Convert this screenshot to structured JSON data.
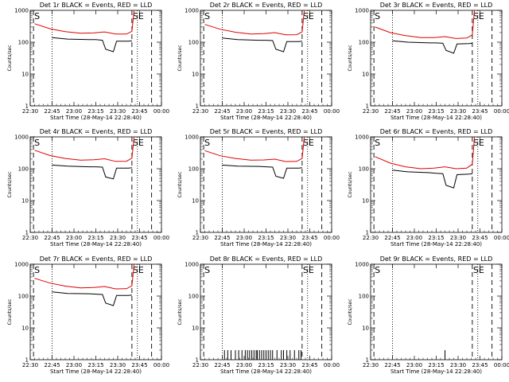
{
  "colors": {
    "events": "#000000",
    "lld": "#e00000"
  },
  "common": {
    "ylabel": "Counts/sec",
    "xlabel": "Start Time (28-May-14 22:28:40)",
    "yticks": [
      "1",
      "10",
      "100",
      "1000"
    ],
    "xticks": [
      "22:30",
      "22:45",
      "23:00",
      "23:15",
      "23:30",
      "23:45",
      "00:00"
    ],
    "marker_s": "S",
    "marker_se": "SE"
  },
  "chart_data": [
    {
      "type": "line",
      "title": "Det 1r BLACK = Events, RED = LLD",
      "yscale": "log",
      "ylim": [
        1,
        1000
      ],
      "series": [
        {
          "name": "Events",
          "points": [
            [
              0.2,
              0
            ],
            [
              0.6,
              0
            ],
            [
              1.0,
              140
            ],
            [
              1.7,
              125
            ],
            [
              2.7,
              120
            ],
            [
              3.0,
              120
            ],
            [
              3.3,
              115
            ],
            [
              3.45,
              60
            ],
            [
              3.8,
              50
            ],
            [
              3.95,
              108
            ],
            [
              4.5,
              108
            ],
            [
              4.65,
              110
            ]
          ]
        },
        {
          "name": "LLD",
          "points": [
            [
              0.2,
              380
            ],
            [
              0.9,
              265
            ],
            [
              1.6,
              215
            ],
            [
              2.3,
              190
            ],
            [
              2.9,
              195
            ],
            [
              3.4,
              210
            ],
            [
              3.9,
              180
            ],
            [
              4.4,
              180
            ],
            [
              4.65,
              220
            ],
            [
              4.75,
              1000
            ]
          ]
        }
      ]
    },
    {
      "type": "line",
      "title": "Det 2r BLACK = Events, RED = LLD",
      "yscale": "log",
      "ylim": [
        1,
        1000
      ],
      "series": [
        {
          "name": "Events",
          "points": [
            [
              0.2,
              0
            ],
            [
              0.6,
              0
            ],
            [
              1.0,
              135
            ],
            [
              1.7,
              120
            ],
            [
              2.7,
              115
            ],
            [
              3.0,
              115
            ],
            [
              3.3,
              112
            ],
            [
              3.45,
              60
            ],
            [
              3.8,
              50
            ],
            [
              3.95,
              105
            ],
            [
              4.5,
              105
            ],
            [
              4.65,
              108
            ]
          ]
        },
        {
          "name": "LLD",
          "points": [
            [
              0.2,
              360
            ],
            [
              0.9,
              255
            ],
            [
              1.6,
              205
            ],
            [
              2.3,
              180
            ],
            [
              2.9,
              185
            ],
            [
              3.4,
              200
            ],
            [
              3.9,
              170
            ],
            [
              4.4,
              172
            ],
            [
              4.65,
              210
            ],
            [
              4.75,
              1000
            ]
          ]
        }
      ]
    },
    {
      "type": "line",
      "title": "Det 3r BLACK = Events, RED = LLD",
      "yscale": "log",
      "ylim": [
        1,
        1000
      ],
      "series": [
        {
          "name": "Events",
          "points": [
            [
              0.2,
              0
            ],
            [
              0.6,
              0
            ],
            [
              1.0,
              110
            ],
            [
              1.7,
              100
            ],
            [
              2.7,
              95
            ],
            [
              3.0,
              95
            ],
            [
              3.3,
              92
            ],
            [
              3.45,
              55
            ],
            [
              3.8,
              45
            ],
            [
              3.95,
              88
            ],
            [
              4.5,
              90
            ],
            [
              4.65,
              92
            ]
          ]
        },
        {
          "name": "LLD",
          "points": [
            [
              0.2,
              300
            ],
            [
              0.9,
              200
            ],
            [
              1.6,
              160
            ],
            [
              2.3,
              140
            ],
            [
              2.9,
              140
            ],
            [
              3.4,
              150
            ],
            [
              3.9,
              130
            ],
            [
              4.4,
              135
            ],
            [
              4.65,
              170
            ],
            [
              4.75,
              1000
            ]
          ]
        }
      ]
    },
    {
      "type": "line",
      "title": "Det 4r BLACK = Events, RED = LLD",
      "yscale": "log",
      "ylim": [
        1,
        1000
      ],
      "series": [
        {
          "name": "Events",
          "points": [
            [
              0.2,
              0
            ],
            [
              0.6,
              0
            ],
            [
              1.0,
              130
            ],
            [
              1.7,
              120
            ],
            [
              2.7,
              115
            ],
            [
              3.0,
              115
            ],
            [
              3.3,
              112
            ],
            [
              3.45,
              55
            ],
            [
              3.8,
              48
            ],
            [
              3.95,
              105
            ],
            [
              4.5,
              105
            ],
            [
              4.65,
              108
            ]
          ]
        },
        {
          "name": "LLD",
          "points": [
            [
              0.2,
              380
            ],
            [
              0.9,
              260
            ],
            [
              1.6,
              210
            ],
            [
              2.3,
              185
            ],
            [
              2.9,
              190
            ],
            [
              3.4,
              205
            ],
            [
              3.9,
              170
            ],
            [
              4.4,
              172
            ],
            [
              4.65,
              215
            ],
            [
              4.75,
              1000
            ]
          ]
        }
      ]
    },
    {
      "type": "line",
      "title": "Det 5r BLACK = Events, RED = LLD",
      "yscale": "log",
      "ylim": [
        1,
        1000
      ],
      "series": [
        {
          "name": "Events",
          "points": [
            [
              0.2,
              0
            ],
            [
              0.6,
              0
            ],
            [
              1.0,
              130
            ],
            [
              1.7,
              120
            ],
            [
              2.7,
              118
            ],
            [
              3.0,
              115
            ],
            [
              3.3,
              112
            ],
            [
              3.45,
              58
            ],
            [
              3.8,
              50
            ],
            [
              3.95,
              105
            ],
            [
              4.5,
              105
            ],
            [
              4.65,
              108
            ]
          ]
        },
        {
          "name": "LLD",
          "points": [
            [
              0.2,
              370
            ],
            [
              0.9,
              255
            ],
            [
              1.6,
              210
            ],
            [
              2.3,
              185
            ],
            [
              2.9,
              188
            ],
            [
              3.4,
              200
            ],
            [
              3.9,
              168
            ],
            [
              4.4,
              170
            ],
            [
              4.65,
              210
            ],
            [
              4.75,
              1000
            ]
          ]
        }
      ]
    },
    {
      "type": "line",
      "title": "Det 6r BLACK = Events, RED = LLD",
      "yscale": "log",
      "ylim": [
        1,
        1000
      ],
      "series": [
        {
          "name": "Events",
          "points": [
            [
              0.2,
              0
            ],
            [
              0.6,
              0
            ],
            [
              1.0,
              90
            ],
            [
              1.7,
              80
            ],
            [
              2.7,
              75
            ],
            [
              3.0,
              72
            ],
            [
              3.3,
              70
            ],
            [
              3.45,
              30
            ],
            [
              3.8,
              25
            ],
            [
              3.95,
              65
            ],
            [
              4.5,
              68
            ],
            [
              4.65,
              70
            ]
          ]
        },
        {
          "name": "LLD",
          "points": [
            [
              0.2,
              240
            ],
            [
              0.9,
              150
            ],
            [
              1.6,
              115
            ],
            [
              2.3,
              100
            ],
            [
              2.9,
              105
            ],
            [
              3.4,
              115
            ],
            [
              3.9,
              100
            ],
            [
              4.4,
              105
            ],
            [
              4.65,
              140
            ],
            [
              4.75,
              1000
            ]
          ]
        }
      ]
    },
    {
      "type": "line",
      "title": "Det 7r BLACK = Events, RED = LLD",
      "yscale": "log",
      "ylim": [
        1,
        1000
      ],
      "series": [
        {
          "name": "Events",
          "points": [
            [
              0.2,
              0
            ],
            [
              0.6,
              0
            ],
            [
              1.0,
              135
            ],
            [
              1.7,
              120
            ],
            [
              2.7,
              118
            ],
            [
              3.0,
              115
            ],
            [
              3.3,
              112
            ],
            [
              3.45,
              60
            ],
            [
              3.8,
              50
            ],
            [
              3.95,
              105
            ],
            [
              4.5,
              105
            ],
            [
              4.65,
              108
            ]
          ]
        },
        {
          "name": "LLD",
          "points": [
            [
              0.2,
              360
            ],
            [
              0.9,
              255
            ],
            [
              1.6,
              205
            ],
            [
              2.3,
              180
            ],
            [
              2.9,
              185
            ],
            [
              3.4,
              200
            ],
            [
              3.9,
              168
            ],
            [
              4.4,
              170
            ],
            [
              4.65,
              210
            ],
            [
              4.75,
              1000
            ]
          ]
        }
      ]
    },
    {
      "type": "line",
      "title": "Det 8r BLACK = Events, RED = LLD",
      "yscale": "log",
      "ylim": [
        1,
        1000
      ],
      "series": [
        {
          "name": "Events",
          "spikes": [
            1.1,
            1.25,
            1.4,
            1.6,
            1.75,
            1.9,
            2.05,
            2.15,
            2.25,
            2.35,
            2.45,
            2.55,
            2.6,
            2.7,
            2.8,
            2.9,
            3.0,
            3.1,
            3.2,
            3.3,
            3.5,
            3.7,
            3.8,
            3.95,
            4.1,
            4.3,
            4.5,
            4.6
          ],
          "spike_value": 2
        }
      ]
    },
    {
      "type": "line",
      "title": "Det 9r BLACK = Events, RED = LLD",
      "yscale": "log",
      "ylim": [
        1,
        1000
      ],
      "series": [
        {
          "name": "Events",
          "spikes": [
            3.4
          ],
          "spike_value": 2
        }
      ]
    }
  ]
}
